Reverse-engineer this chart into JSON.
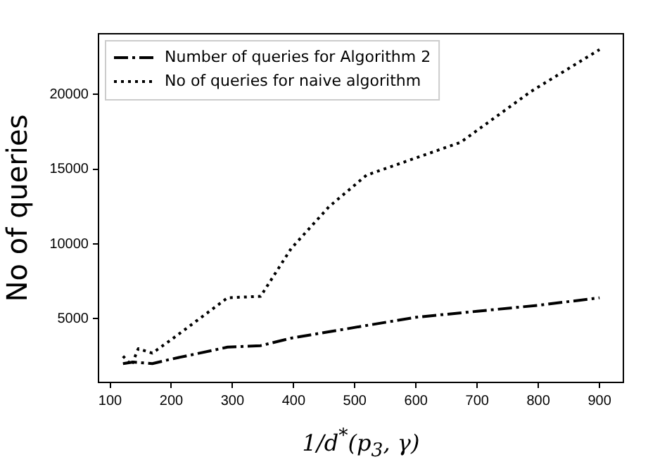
{
  "chart_data": {
    "type": "line",
    "xlabel": "1/d$^{*}$(p$_{3}$, γ)",
    "ylabel": "No of queries",
    "xlim": [
      81,
      939
    ],
    "xticks": [
      100,
      200,
      300,
      400,
      500,
      600,
      700,
      800,
      900
    ],
    "ylim": [
      740,
      24060
    ],
    "yticks": [
      5000,
      10000,
      15000,
      20000
    ],
    "grid": false,
    "legend": "top left",
    "marker": "none",
    "series": [
      {
        "name": "Number of queries for Algorithm 2",
        "color": "#000000",
        "line_style": "dashed",
        "x": [
          121,
          138,
          169,
          200,
          292,
          346,
          396,
          512,
          600,
          700,
          800,
          900
        ],
        "values": [
          2000,
          2100,
          2000,
          2300,
          3100,
          3200,
          3700,
          4500,
          5100,
          5500,
          5900,
          6400
        ]
      },
      {
        "name": "No of queries for naive algorithm",
        "color": "#000000",
        "line_style": "dotted",
        "x": [
          121,
          135,
          146,
          169,
          200,
          292,
          346,
          396,
          458,
          519,
          596,
          673,
          788,
          900
        ],
        "values": [
          2500,
          1900,
          3000,
          2700,
          3600,
          6400,
          6500,
          9700,
          12500,
          14600,
          15700,
          16800,
          20200,
          23000
        ]
      }
    ]
  }
}
